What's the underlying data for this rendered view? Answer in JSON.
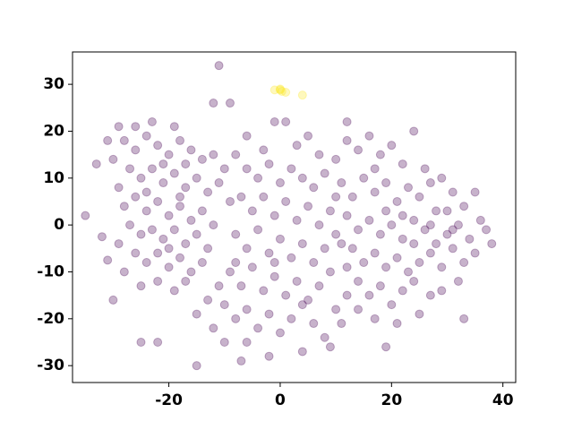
{
  "chart_data": {
    "type": "scatter",
    "xlim": [
      -37.3,
      42.3
    ],
    "ylim": [
      -33.6,
      36.9
    ],
    "xticks": [
      -20,
      0,
      20,
      40
    ],
    "yticks": [
      -30,
      -20,
      -10,
      0,
      10,
      20,
      30
    ],
    "opacity": 0.3,
    "series": [
      {
        "color": "#440154",
        "x": [
          -28,
          -26,
          -24,
          -22,
          -20,
          -18,
          -16,
          -14,
          -27,
          -25,
          -23,
          -21,
          -19,
          -17,
          -15,
          -13,
          -11,
          -29,
          -28,
          -26,
          -24,
          -22,
          -20,
          -18,
          -16,
          -14,
          -12,
          -27,
          -25,
          -23,
          -21,
          -19,
          -17,
          -15,
          -13,
          -26,
          -24,
          -22,
          -20,
          -18,
          -16,
          -14,
          -28,
          -25,
          -22,
          -19,
          -30,
          -31,
          -29,
          -23,
          -19,
          -26,
          -17,
          -21,
          -24,
          -18,
          -20,
          -10,
          -12,
          -9,
          -8,
          -6,
          -4,
          -2,
          0,
          2,
          4,
          6,
          8,
          -7,
          -5,
          -3,
          -1,
          1,
          3,
          5,
          7,
          9,
          -8,
          -6,
          -4,
          -2,
          0,
          2,
          4,
          6,
          8,
          -9,
          -7,
          -5,
          -3,
          -1,
          1,
          3,
          5,
          7,
          9,
          -10,
          -8,
          -6,
          -4,
          -2,
          0,
          2,
          4,
          6,
          8,
          -12,
          -10,
          -6,
          10,
          12,
          11,
          -11,
          -13,
          -15,
          -17,
          -6,
          -3,
          3,
          5,
          7,
          10,
          -8,
          10,
          -1,
          12,
          14,
          16,
          18,
          20,
          22,
          11,
          13,
          15,
          17,
          19,
          21,
          23,
          25,
          27,
          29,
          31,
          12,
          14,
          16,
          18,
          20,
          22,
          24,
          26,
          28,
          30,
          32,
          34,
          36,
          13,
          15,
          17,
          19,
          21,
          23,
          25,
          27,
          29,
          31,
          33,
          35,
          14,
          16,
          18,
          20,
          22,
          24,
          12,
          11,
          10,
          26,
          28,
          30,
          33,
          35,
          37,
          32,
          29,
          17,
          14,
          21,
          19,
          17,
          24,
          31,
          27,
          22,
          -11,
          -35,
          -32,
          -31,
          -12,
          -9,
          -1,
          1,
          12,
          24,
          33,
          38,
          -15,
          -7,
          -2,
          4,
          19,
          9,
          -29,
          -30,
          -25,
          -22,
          27,
          25,
          -33
        ],
        "values": [
          18,
          16,
          19,
          17,
          15,
          18,
          16,
          14,
          12,
          10,
          12,
          9,
          11,
          8,
          10,
          7,
          9,
          8,
          4,
          6,
          3,
          5,
          2,
          4,
          1,
          3,
          0,
          0,
          -2,
          -1,
          -3,
          -1,
          -4,
          -2,
          -5,
          -6,
          -8,
          -6,
          -9,
          -7,
          -10,
          -8,
          -10,
          -13,
          -12,
          -14,
          14,
          18,
          -4,
          22,
          21,
          21,
          13,
          13,
          7,
          6,
          -5,
          12,
          15,
          5,
          15,
          12,
          10,
          13,
          9,
          12,
          10,
          8,
          11,
          6,
          3,
          6,
          2,
          5,
          1,
          4,
          0,
          3,
          -2,
          -5,
          -1,
          -6,
          -3,
          -7,
          -4,
          -8,
          -5,
          -10,
          -13,
          -9,
          -14,
          -11,
          -15,
          -12,
          -16,
          -13,
          -10,
          -17,
          -20,
          -18,
          -22,
          -19,
          -23,
          -20,
          -17,
          -21,
          -24,
          -22,
          -25,
          -25,
          -18,
          -15,
          -21,
          -13,
          -16,
          -19,
          -12,
          19,
          16,
          17,
          19,
          15,
          14,
          -8,
          -2,
          -8,
          18,
          16,
          19,
          15,
          17,
          13,
          9,
          6,
          10,
          7,
          9,
          5,
          8,
          6,
          9,
          10,
          7,
          2,
          -1,
          1,
          -2,
          0,
          -3,
          1,
          -1,
          -4,
          -2,
          0,
          -3,
          1,
          -5,
          -8,
          -6,
          -9,
          -7,
          -10,
          -8,
          -6,
          -9,
          -5,
          -8,
          -6,
          -12,
          -15,
          -13,
          -17,
          -14,
          -12,
          -9,
          -4,
          6,
          12,
          3,
          3,
          4,
          7,
          -1,
          -12,
          -14,
          -20,
          -18,
          -21,
          3,
          12,
          -4,
          -1,
          0,
          2,
          34,
          2,
          -2.5,
          -7.5,
          26,
          26,
          22,
          22,
          22,
          20,
          -20,
          -4,
          -30,
          -29,
          -28,
          -27,
          -26,
          -26,
          21,
          -16,
          -25,
          -25,
          -15,
          -19,
          13
        ]
      },
      {
        "color": "#fde725",
        "x": [
          -1,
          0,
          0.3,
          1,
          4,
          0
        ],
        "values": [
          28.8,
          29,
          28.5,
          28.3,
          27.7,
          28.8
        ]
      }
    ]
  }
}
